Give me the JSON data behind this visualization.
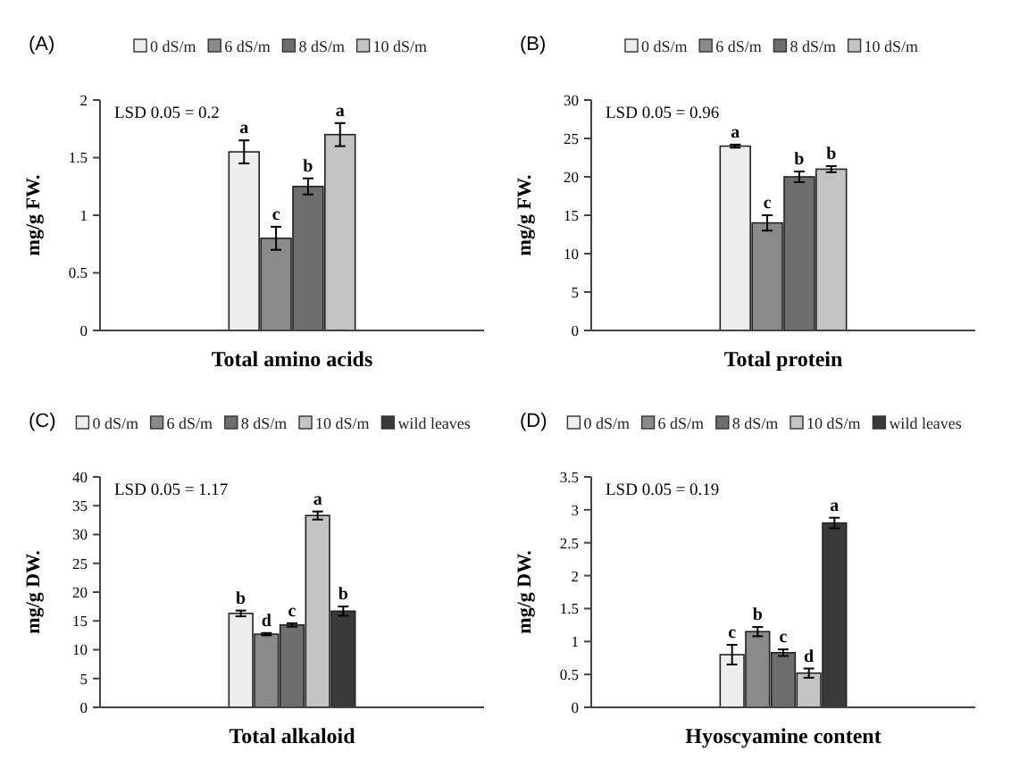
{
  "chart_data": [
    {
      "type": "bar",
      "title": "(A)",
      "ylabel": "mg/g FW.",
      "categories": [
        "Total amino acids"
      ],
      "ylim": [
        0,
        2
      ],
      "yticks": [
        0,
        0.5,
        1,
        1.5,
        2
      ],
      "legend": "top",
      "grid": false,
      "annotations": [
        "LSD 0.05 = 0.2"
      ],
      "series": [
        {
          "name": "0 dS/m",
          "color": "#eeeeee",
          "values": [
            1.55
          ],
          "errors": [
            0.1
          ],
          "value_labels": [
            "a"
          ]
        },
        {
          "name": "6 dS/m",
          "color": "#8a8a8a",
          "values": [
            0.8
          ],
          "errors": [
            0.1
          ],
          "value_labels": [
            "c"
          ]
        },
        {
          "name": "8 dS/m",
          "color": "#6e6e6e",
          "values": [
            1.25
          ],
          "errors": [
            0.07
          ],
          "value_labels": [
            "b"
          ]
        },
        {
          "name": "10 dS/m",
          "color": "#c4c4c4",
          "values": [
            1.7
          ],
          "errors": [
            0.1
          ],
          "value_labels": [
            "a"
          ]
        }
      ]
    },
    {
      "type": "bar",
      "title": "(B)",
      "ylabel": "mg/g FW.",
      "categories": [
        "Total protein"
      ],
      "ylim": [
        0,
        30
      ],
      "yticks": [
        0,
        5,
        10,
        15,
        20,
        25,
        30
      ],
      "legend": "top",
      "grid": false,
      "annotations": [
        "LSD 0.05 = 0.96"
      ],
      "series": [
        {
          "name": "0 dS/m",
          "color": "#eeeeee",
          "values": [
            24
          ],
          "errors": [
            0.2
          ],
          "value_labels": [
            "a"
          ]
        },
        {
          "name": "6 dS/m",
          "color": "#8a8a8a",
          "values": [
            14
          ],
          "errors": [
            1
          ],
          "value_labels": [
            "c"
          ]
        },
        {
          "name": "8 dS/m",
          "color": "#6e6e6e",
          "values": [
            20
          ],
          "errors": [
            0.7
          ],
          "value_labels": [
            "b"
          ]
        },
        {
          "name": "10 dS/m",
          "color": "#c4c4c4",
          "values": [
            21
          ],
          "errors": [
            0.4
          ],
          "value_labels": [
            "b"
          ]
        }
      ]
    },
    {
      "type": "bar",
      "title": "(C)",
      "ylabel": "mg/g DW.",
      "categories": [
        "Total alkaloid"
      ],
      "ylim": [
        0,
        40
      ],
      "yticks": [
        0,
        5,
        10,
        15,
        20,
        25,
        30,
        35,
        40
      ],
      "legend": "top",
      "grid": false,
      "annotations": [
        "LSD 0.05 = 1.17"
      ],
      "series": [
        {
          "name": "0 dS/m",
          "color": "#eeeeee",
          "values": [
            16.3
          ],
          "errors": [
            0.5
          ],
          "value_labels": [
            "b"
          ]
        },
        {
          "name": "6 dS/m",
          "color": "#8a8a8a",
          "values": [
            12.7
          ],
          "errors": [
            0.2
          ],
          "value_labels": [
            "d"
          ]
        },
        {
          "name": "8 dS/m",
          "color": "#6e6e6e",
          "values": [
            14.3
          ],
          "errors": [
            0.3
          ],
          "value_labels": [
            "c"
          ]
        },
        {
          "name": "10 dS/m",
          "color": "#c4c4c4",
          "values": [
            33.3
          ],
          "errors": [
            0.7
          ],
          "value_labels": [
            "a"
          ]
        },
        {
          "name": "wild leaves",
          "color": "#3a3a3a",
          "values": [
            16.7
          ],
          "errors": [
            0.8
          ],
          "value_labels": [
            "b"
          ]
        }
      ]
    },
    {
      "type": "bar",
      "title": "(D)",
      "ylabel": "mg/g DW.",
      "categories": [
        "Hyoscyamine content"
      ],
      "ylim": [
        0,
        3.5
      ],
      "yticks": [
        0,
        0.5,
        1,
        1.5,
        2,
        2.5,
        3,
        3.5
      ],
      "legend": "top",
      "grid": false,
      "annotations": [
        "LSD 0.05 = 0.19"
      ],
      "series": [
        {
          "name": "0 dS/m",
          "color": "#eeeeee",
          "values": [
            0.8
          ],
          "errors": [
            0.15
          ],
          "value_labels": [
            "c"
          ]
        },
        {
          "name": "6 dS/m",
          "color": "#8a8a8a",
          "values": [
            1.15
          ],
          "errors": [
            0.07
          ],
          "value_labels": [
            "b"
          ]
        },
        {
          "name": "8 dS/m",
          "color": "#6e6e6e",
          "values": [
            0.83
          ],
          "errors": [
            0.05
          ],
          "value_labels": [
            "c"
          ]
        },
        {
          "name": "10 dS/m",
          "color": "#c4c4c4",
          "values": [
            0.52
          ],
          "errors": [
            0.07
          ],
          "value_labels": [
            "d"
          ]
        },
        {
          "name": "wild leaves",
          "color": "#3a3a3a",
          "values": [
            2.8
          ],
          "errors": [
            0.08
          ],
          "value_labels": [
            "a"
          ]
        }
      ]
    }
  ]
}
